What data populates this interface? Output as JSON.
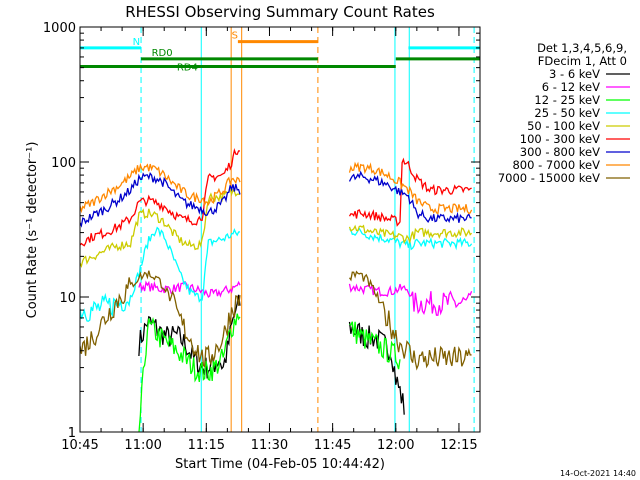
{
  "chart_data": {
    "type": "line",
    "title": "RHESSI Observing Summary Count Rates",
    "xlabel": "Start Time (04-Feb-05 10:44:42)",
    "ylabel": "Count Rate (s⁻¹ detector⁻¹)",
    "y_scale": "log",
    "ylim": [
      1,
      1000
    ],
    "xlim": [
      645,
      740
    ],
    "x_ticks": [
      {
        "t": 645,
        "label": "10:45"
      },
      {
        "t": 660,
        "label": "11:00"
      },
      {
        "t": 675,
        "label": "11:15"
      },
      {
        "t": 690,
        "label": "11:30"
      },
      {
        "t": 705,
        "label": "11:45"
      },
      {
        "t": 720,
        "label": "12:00"
      },
      {
        "t": 735,
        "label": "12:15"
      }
    ],
    "y_ticks": [
      {
        "v": 1,
        "label": "1"
      },
      {
        "v": 10,
        "label": "10"
      },
      {
        "v": 100,
        "label": "100"
      },
      {
        "v": 1000,
        "label": "1000"
      }
    ],
    "legend": {
      "placement": "right",
      "header": [
        "Det 1,3,4,5,6,9,",
        "FDecim 1, Att 0"
      ]
    },
    "series": [
      {
        "name": "3 - 6 keV",
        "color": "#000000",
        "x": [
          659.0,
          661.0,
          663.0,
          664.0,
          666.0,
          668.0,
          670.0,
          672.0,
          674.0,
          675.5,
          677.0,
          678.0,
          679.0,
          680.0,
          681.0,
          682.0,
          683.0,
          709.0,
          711.0,
          713.0,
          715.0,
          717.0,
          719.0,
          720.0,
          721.0,
          722.0
        ],
        "y": [
          4.5,
          6.5,
          6.0,
          5.5,
          5.0,
          5.2,
          4.5,
          3.5,
          3.0,
          3.0,
          3.2,
          3.5,
          3.0,
          4.0,
          6.0,
          8.0,
          9.0,
          6.0,
          5.5,
          5.0,
          5.0,
          4.5,
          4.0,
          2.5,
          2.0,
          1.5
        ]
      },
      {
        "name": "6 - 12 keV",
        "color": "#ff00ff",
        "x": [
          659.0,
          661.0,
          664.0,
          667.0,
          670.0,
          672.0,
          674.0,
          675.5,
          677.0,
          679.0,
          681.0,
          683.0,
          709.0,
          712.0,
          716.0,
          719.0,
          721.0,
          723.0,
          724.0,
          726.0,
          729.0,
          732.0,
          735.0,
          738.0
        ],
        "y": [
          12.0,
          12.0,
          11.5,
          11.5,
          12.0,
          11.5,
          11.0,
          10.5,
          10.5,
          11.0,
          11.5,
          12.5,
          12.0,
          11.5,
          11.0,
          11.0,
          11.5,
          11.5,
          9.0,
          9.0,
          9.0,
          9.0,
          9.0,
          9.0
        ]
      },
      {
        "name": "12 - 25 keV",
        "color": "#00ff00",
        "x": [
          659.0,
          661.0,
          663.0,
          664.0,
          666.0,
          668.0,
          670.0,
          672.0,
          674.0,
          675.5,
          677.0,
          679.0,
          681.0,
          683.0,
          709.0,
          712.0,
          715.0,
          718.0,
          721.0
        ],
        "y": [
          1.0,
          6.0,
          5.5,
          5.0,
          4.5,
          4.0,
          3.5,
          3.0,
          2.8,
          2.8,
          3.0,
          3.5,
          6.0,
          8.0,
          6.0,
          5.0,
          4.5,
          4.0,
          3.5
        ]
      },
      {
        "name": "25 - 50 keV",
        "color": "#00ffff",
        "x": [
          645.0,
          648.0,
          651.0,
          654.0,
          657.0,
          659.0,
          661.0,
          663.0,
          665.0,
          667.0,
          669.0,
          671.0,
          673.0,
          674.0,
          675.5,
          677.0,
          679.0,
          681.0,
          683.0,
          709.0,
          712.0,
          715.0,
          718.0,
          721.0,
          723.0,
          725.0,
          728.0,
          731.0,
          734.0,
          738.0
        ],
        "y": [
          8.0,
          8.0,
          8.5,
          9.0,
          10.0,
          15.0,
          25.0,
          32.0,
          28.0,
          20.0,
          14.0,
          11.0,
          10.0,
          10.0,
          25.0,
          26.0,
          27.0,
          29.0,
          30.0,
          31.0,
          30.0,
          28.0,
          27.0,
          25.0,
          24.0,
          25.0,
          25.0,
          25.0,
          25.0,
          25.0
        ]
      },
      {
        "name": "50 - 100 keV",
        "color": "#cccc00",
        "x": [
          645.0,
          648.0,
          651.0,
          654.0,
          657.0,
          659.0,
          661.0,
          663.0,
          665.0,
          667.0,
          669.0,
          671.0,
          673.0,
          674.0,
          675.5,
          677.0,
          679.0,
          681.0,
          683.0,
          709.0,
          712.0,
          715.0,
          718.0,
          721.0,
          723.0,
          725.0,
          728.0,
          731.0,
          734.0,
          738.0
        ],
        "y": [
          18.0,
          20.0,
          22.0,
          24.0,
          25.0,
          40.0,
          42.0,
          40.0,
          36.0,
          30.0,
          26.0,
          24.0,
          24.0,
          25.0,
          55.0,
          55.0,
          55.0,
          60.0,
          62.0,
          33.0,
          32.0,
          30.0,
          29.0,
          28.0,
          27.0,
          30.0,
          30.0,
          30.0,
          30.0,
          30.0
        ]
      },
      {
        "name": "100 - 300 keV",
        "color": "#ff0000",
        "x": [
          645.0,
          648.0,
          651.0,
          654.0,
          657.0,
          659.0,
          661.0,
          663.0,
          665.0,
          667.0,
          669.0,
          671.0,
          673.0,
          674.0,
          675.5,
          677.0,
          679.0,
          681.0,
          682.0,
          683.0,
          709.0,
          712.0,
          715.0,
          718.0,
          721.0,
          721.5,
          723.0,
          725.0,
          728.0,
          731.0,
          734.0,
          738.0
        ],
        "y": [
          25.0,
          28.0,
          30.0,
          33.0,
          38.0,
          50.0,
          52.0,
          50.0,
          47.0,
          42.0,
          38.0,
          37.0,
          37.0,
          40.0,
          75.0,
          78.0,
          80.0,
          100.0,
          120.0,
          130.0,
          40.0,
          42.0,
          40.0,
          38.0,
          36.0,
          105.0,
          95.0,
          75.0,
          62.0,
          62.0,
          62.0,
          62.0
        ]
      },
      {
        "name": "300 - 800 keV",
        "color": "#0000cc",
        "x": [
          645.0,
          648.0,
          651.0,
          654.0,
          657.0,
          659.0,
          661.0,
          663.0,
          665.0,
          667.0,
          669.0,
          671.0,
          673.0,
          674.0,
          675.5,
          677.0,
          679.0,
          681.0,
          683.0,
          709.0,
          712.0,
          715.0,
          718.0,
          721.0,
          723.0,
          725.0,
          728.0,
          731.0,
          734.0,
          738.0
        ],
        "y": [
          35.0,
          40.0,
          45.0,
          52.0,
          62.0,
          75.0,
          78.0,
          76.0,
          70.0,
          60.0,
          52.0,
          48.0,
          46.0,
          45.0,
          42.0,
          45.0,
          50.0,
          65.0,
          62.0,
          75.0,
          78.0,
          74.0,
          68.0,
          60.0,
          56.0,
          42.0,
          38.0,
          38.0,
          38.0,
          38.0
        ]
      },
      {
        "name": "800 - 7000 keV",
        "color": "#ff8800",
        "x": [
          645.0,
          648.0,
          651.0,
          654.0,
          657.0,
          659.0,
          661.0,
          663.0,
          665.0,
          667.0,
          669.0,
          671.0,
          673.0,
          674.0,
          675.5,
          677.0,
          679.0,
          681.0,
          683.0,
          709.0,
          712.0,
          715.0,
          718.0,
          721.0,
          723.0,
          725.0,
          728.0,
          731.0,
          734.0,
          738.0
        ],
        "y": [
          45.0,
          50.0,
          58.0,
          66.0,
          78.0,
          90.0,
          92.0,
          88.0,
          80.0,
          70.0,
          62.0,
          56.0,
          54.0,
          54.0,
          50.0,
          55.0,
          62.0,
          75.0,
          72.0,
          90.0,
          92.0,
          88.0,
          80.0,
          70.0,
          62.0,
          52.0,
          45.0,
          45.0,
          45.0,
          45.0
        ]
      },
      {
        "name": "7000 - 15000 keV",
        "color": "#806000",
        "x": [
          645.0,
          648.0,
          651.0,
          654.0,
          657.0,
          659.0,
          661.0,
          663.0,
          665.0,
          667.0,
          669.0,
          671.0,
          673.0,
          674.0,
          675.5,
          677.0,
          679.0,
          681.0,
          683.0,
          709.0,
          711.0,
          713.0,
          715.0,
          717.0,
          719.0,
          721.0,
          723.0,
          724.0,
          726.0,
          729.0,
          732.0,
          735.0,
          738.0
        ],
        "y": [
          4.0,
          5.0,
          7.0,
          9.5,
          12.0,
          14.0,
          15.0,
          14.0,
          12.0,
          9.0,
          6.5,
          5.0,
          4.0,
          3.5,
          3.5,
          4.0,
          5.0,
          8.0,
          10.0,
          14.0,
          15.0,
          13.5,
          11.0,
          8.0,
          6.0,
          4.5,
          4.0,
          3.5,
          3.5,
          3.5,
          3.5,
          3.5,
          3.5
        ]
      }
    ],
    "state_bars": [
      {
        "label": "N",
        "color": "#00ffff",
        "level": 700,
        "segments": [
          [
            645,
            659.5
          ],
          [
            723,
            740
          ]
        ]
      },
      {
        "label": "S",
        "color": "#ff8800",
        "level": 780,
        "segments": [
          [
            682.5,
            701.5
          ]
        ]
      },
      {
        "label": "RD0",
        "color": "#008800",
        "level": 580,
        "segments": [
          [
            659.5,
            701.5
          ],
          [
            720,
            740
          ]
        ]
      },
      {
        "label": "RD4",
        "color": "#008800",
        "level": 510,
        "segments": [
          [
            645,
            701.5
          ],
          [
            701.5,
            720
          ]
        ]
      }
    ],
    "markers": [
      {
        "t": 659.5,
        "color": "#00ffff",
        "style": "dashed"
      },
      {
        "t": 673.8,
        "color": "#00ffff",
        "style": "solid"
      },
      {
        "t": 680.9,
        "color": "#ff8800",
        "style": "solid"
      },
      {
        "t": 683.4,
        "color": "#ff8800",
        "style": "solid"
      },
      {
        "t": 701.5,
        "color": "#ff8800",
        "style": "dashed"
      },
      {
        "t": 719.8,
        "color": "#00ffff",
        "style": "solid"
      },
      {
        "t": 723.2,
        "color": "#00ffff",
        "style": "solid"
      },
      {
        "t": 738.6,
        "color": "#00ffff",
        "style": "dashed"
      }
    ],
    "footer": "14-Oct-2021 14:40"
  }
}
